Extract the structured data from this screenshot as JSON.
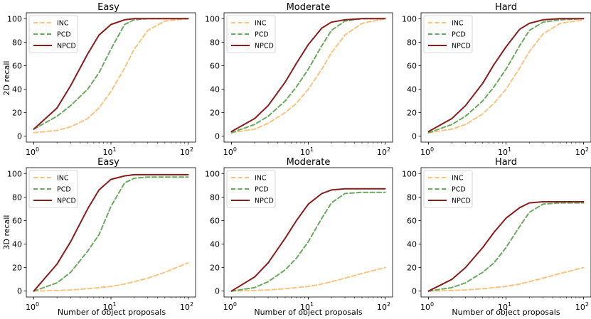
{
  "colors": {
    "INC": "#fcc380",
    "PCD": "#6aaa5e",
    "NPCD": "#8b1c1c"
  },
  "series_styles": [
    {
      "name": "INC",
      "dash": true
    },
    {
      "name": "PCD",
      "dash": true
    },
    {
      "name": "NPCD",
      "dash": false
    }
  ],
  "chart_data": [
    {
      "type": "line",
      "title": "Easy",
      "ylabel": "2D recall",
      "xlabel": "",
      "xscale": "log",
      "xlim": [
        0.8,
        125
      ],
      "ylim": [
        -5,
        105
      ],
      "yticks": [
        0,
        20,
        40,
        60,
        80,
        100
      ],
      "legend": "top-left",
      "x": [
        1,
        2,
        3,
        5,
        7,
        10,
        15,
        20,
        30,
        50,
        100
      ],
      "series": [
        {
          "name": "INC",
          "values": [
            3,
            5,
            8,
            15,
            24,
            38,
            58,
            74,
            90,
            98,
            100
          ]
        },
        {
          "name": "PCD",
          "values": [
            6,
            17,
            26,
            40,
            54,
            74,
            95,
            99,
            100,
            100,
            100
          ]
        },
        {
          "name": "NPCD",
          "values": [
            6,
            24,
            43,
            70,
            86,
            95,
            99,
            100,
            100,
            100,
            100
          ]
        }
      ]
    },
    {
      "type": "line",
      "title": "Moderate",
      "ylabel": "",
      "xlabel": "",
      "xscale": "log",
      "xlim": [
        0.8,
        125
      ],
      "ylim": [
        -5,
        105
      ],
      "yticks": [
        0,
        20,
        40,
        60,
        80,
        100
      ],
      "legend": "top-left",
      "x": [
        1,
        2,
        3,
        5,
        7,
        10,
        15,
        20,
        30,
        50,
        100
      ],
      "series": [
        {
          "name": "INC",
          "values": [
            3,
            6,
            11,
            20,
            28,
            40,
            57,
            71,
            86,
            96,
            100
          ]
        },
        {
          "name": "PCD",
          "values": [
            3,
            10,
            17,
            30,
            42,
            57,
            77,
            90,
            98,
            100,
            100
          ]
        },
        {
          "name": "NPCD",
          "values": [
            4,
            15,
            26,
            46,
            62,
            78,
            92,
            97,
            99,
            100,
            100
          ]
        }
      ]
    },
    {
      "type": "line",
      "title": "Hard",
      "ylabel": "",
      "xlabel": "",
      "xscale": "log",
      "xlim": [
        0.8,
        125
      ],
      "ylim": [
        -5,
        105
      ],
      "yticks": [
        0,
        20,
        40,
        60,
        80,
        100
      ],
      "legend": "top-left",
      "x": [
        1,
        2,
        3,
        5,
        7,
        10,
        15,
        20,
        30,
        50,
        100
      ],
      "series": [
        {
          "name": "INC",
          "values": [
            3,
            6,
            10,
            19,
            28,
            40,
            58,
            72,
            87,
            96,
            99
          ]
        },
        {
          "name": "PCD",
          "values": [
            3,
            10,
            17,
            30,
            42,
            57,
            77,
            90,
            97,
            99,
            100
          ]
        },
        {
          "name": "NPCD",
          "values": [
            4,
            15,
            26,
            45,
            61,
            76,
            91,
            96,
            99,
            100,
            100
          ]
        }
      ]
    },
    {
      "type": "line",
      "title": "Easy",
      "ylabel": "3D recall",
      "xlabel": "Number of object proposals",
      "xscale": "log",
      "xlim": [
        0.8,
        125
      ],
      "ylim": [
        -5,
        105
      ],
      "yticks": [
        0,
        20,
        40,
        60,
        80,
        100
      ],
      "legend": "top-left",
      "x": [
        1,
        2,
        3,
        5,
        7,
        10,
        15,
        20,
        30,
        50,
        100
      ],
      "series": [
        {
          "name": "INC",
          "values": [
            0,
            0.5,
            1,
            2,
            3,
            4,
            6,
            8,
            11,
            16,
            24
          ]
        },
        {
          "name": "PCD",
          "values": [
            0,
            7,
            16,
            34,
            48,
            72,
            92,
            96,
            97,
            97,
            97
          ]
        },
        {
          "name": "NPCD",
          "values": [
            0,
            23,
            42,
            70,
            86,
            95,
            98,
            99,
            99,
            99,
            99
          ]
        }
      ]
    },
    {
      "type": "line",
      "title": "Moderate",
      "ylabel": "",
      "xlabel": "Number of object proposals",
      "xscale": "log",
      "xlim": [
        0.8,
        125
      ],
      "ylim": [
        -5,
        105
      ],
      "yticks": [
        0,
        20,
        40,
        60,
        80,
        100
      ],
      "legend": "top-left",
      "x": [
        1,
        2,
        3,
        5,
        7,
        10,
        15,
        20,
        30,
        50,
        100
      ],
      "series": [
        {
          "name": "INC",
          "values": [
            0,
            0.5,
            1,
            2,
            3,
            4,
            6,
            8,
            11,
            15,
            20
          ]
        },
        {
          "name": "PCD",
          "values": [
            0,
            3,
            8,
            18,
            28,
            42,
            62,
            75,
            83,
            84,
            84
          ]
        },
        {
          "name": "NPCD",
          "values": [
            0,
            12,
            24,
            45,
            60,
            74,
            83,
            86,
            87,
            87,
            87
          ]
        }
      ]
    },
    {
      "type": "line",
      "title": "Hard",
      "ylabel": "",
      "xlabel": "Number of object proposals",
      "xscale": "log",
      "xlim": [
        0.8,
        125
      ],
      "ylim": [
        -5,
        105
      ],
      "yticks": [
        0,
        20,
        40,
        60,
        80,
        100
      ],
      "legend": "top-left",
      "x": [
        1,
        2,
        3,
        5,
        7,
        10,
        15,
        20,
        30,
        50,
        100
      ],
      "series": [
        {
          "name": "INC",
          "values": [
            0,
            0.5,
            1,
            2,
            3,
            4,
            6,
            8,
            11,
            15,
            20
          ]
        },
        {
          "name": "PCD",
          "values": [
            0,
            3,
            7,
            16,
            24,
            37,
            55,
            67,
            74,
            75,
            75
          ]
        },
        {
          "name": "NPCD",
          "values": [
            0,
            10,
            20,
            37,
            50,
            62,
            71,
            75,
            76,
            76,
            76
          ]
        }
      ]
    }
  ]
}
